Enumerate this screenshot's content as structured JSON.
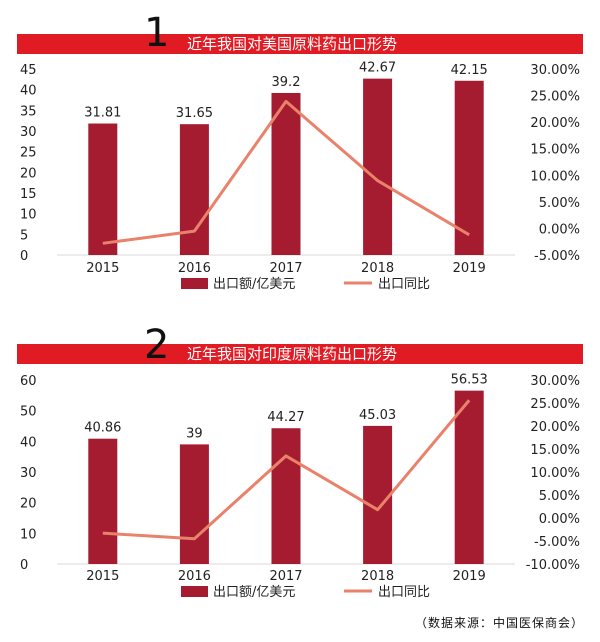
{
  "source_note": "（数据来源：中国医保商会）",
  "chart_data": [
    {
      "type": "bar",
      "panel_label": "1",
      "title": "近年我国对美国原料药出口形势",
      "categories": [
        "2015",
        "2016",
        "2017",
        "2018",
        "2019"
      ],
      "y_ticks": [
        "0",
        "5",
        "10",
        "15",
        "20",
        "25",
        "30",
        "35",
        "40",
        "45"
      ],
      "y2_ticks": [
        "-5.00%",
        "0.00%",
        "5.00%",
        "10.00%",
        "15.00%",
        "20.00%",
        "25.00%",
        "30.00%"
      ],
      "ylim": [
        0,
        45
      ],
      "y2lim": [
        -5,
        30
      ],
      "series": [
        {
          "name": "出口额/亿美元",
          "type": "bar",
          "axis": "left",
          "color": "#a51c30",
          "values": [
            31.81,
            31.65,
            39.2,
            42.67,
            42.15
          ],
          "labels": [
            "31.81",
            "31.65",
            "39.2",
            "42.67",
            "42.15"
          ]
        },
        {
          "name": "出口同比",
          "type": "line",
          "axis": "right",
          "color": "#e8826b",
          "values": [
            -2.8,
            -0.5,
            23.9,
            9.0,
            -1.2
          ]
        }
      ],
      "legend_position": "bottom",
      "grid": false
    },
    {
      "type": "bar",
      "panel_label": "2",
      "title": "近年我国对印度原料药出口形势",
      "categories": [
        "2015",
        "2016",
        "2017",
        "2018",
        "2019"
      ],
      "y_ticks": [
        "0",
        "10",
        "20",
        "30",
        "40",
        "50",
        "60"
      ],
      "y2_ticks": [
        "-10.00%",
        "-5.00%",
        "0.00%",
        "5.00%",
        "10.00%",
        "15.00%",
        "20.00%",
        "25.00%",
        "30.00%"
      ],
      "ylim": [
        0,
        60
      ],
      "y2lim": [
        -10,
        30
      ],
      "series": [
        {
          "name": "出口额/亿美元",
          "type": "bar",
          "axis": "left",
          "color": "#a51c30",
          "values": [
            40.86,
            39,
            44.27,
            45.03,
            56.53
          ],
          "labels": [
            "40.86",
            "39",
            "44.27",
            "45.03",
            "56.53"
          ]
        },
        {
          "name": "出口同比",
          "type": "line",
          "axis": "right",
          "color": "#e8826b",
          "values": [
            -3.3,
            -4.5,
            13.5,
            1.8,
            25.6
          ]
        }
      ],
      "legend_position": "bottom",
      "grid": false
    }
  ]
}
